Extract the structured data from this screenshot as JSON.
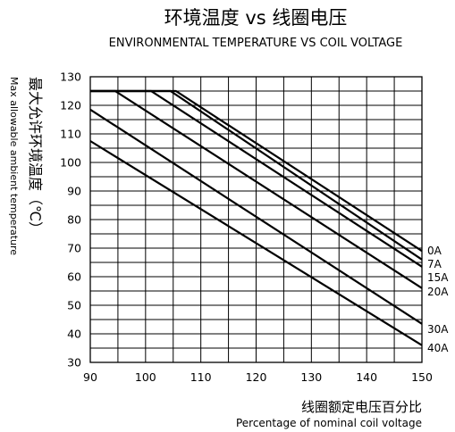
{
  "chart_data": {
    "type": "line",
    "title": "环境温度 vs 线圈电压",
    "subtitle": "ENVIRONMENTAL TEMPERATURE VS COIL VOLTAGE",
    "ylabel_cn": "最大允许环境温度（℃）",
    "ylabel_en": "Max allowable ambient temperature",
    "xlabel_cn": "线圈额定电压百分比",
    "xlabel_en": "Percentage of nominal coil voltage",
    "xlim": [
      90,
      150
    ],
    "ylim": [
      30,
      130
    ],
    "x_ticks": [
      90,
      100,
      110,
      120,
      130,
      140,
      150
    ],
    "y_ticks": [
      30,
      40,
      50,
      60,
      70,
      80,
      90,
      100,
      110,
      120,
      130
    ],
    "grid": true,
    "series": [
      {
        "name": "0A",
        "x": [
          90,
          105.5,
          150
        ],
        "y": [
          125,
          125,
          69
        ]
      },
      {
        "name": "7A",
        "x": [
          90,
          104.5,
          150
        ],
        "y": [
          125,
          125,
          66
        ]
      },
      {
        "name": "15A",
        "x": [
          90,
          101,
          150
        ],
        "y": [
          125,
          125,
          63.5
        ]
      },
      {
        "name": "20A",
        "x": [
          90,
          94.5,
          150
        ],
        "y": [
          125,
          125,
          56
        ]
      },
      {
        "name": "30A",
        "x": [
          90,
          150
        ],
        "y": [
          118.5,
          43.5
        ]
      },
      {
        "name": "40A",
        "x": [
          90,
          150
        ],
        "y": [
          107.5,
          36
        ]
      }
    ]
  }
}
